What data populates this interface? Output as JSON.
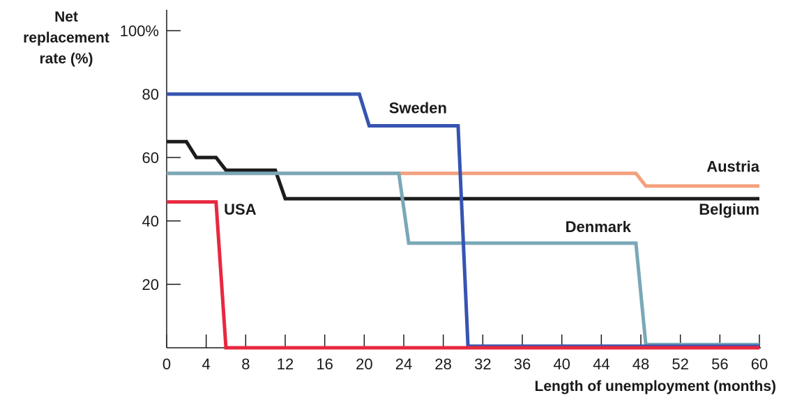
{
  "chart_data": {
    "type": "line",
    "title": "",
    "xlabel": "Length of unemployment (months)",
    "ylabel_lines": [
      "Net",
      "replacement",
      "rate (%)"
    ],
    "xlim": [
      0,
      60
    ],
    "ylim": [
      0,
      100
    ],
    "x_ticks": [
      0,
      4,
      8,
      12,
      16,
      20,
      24,
      28,
      32,
      36,
      40,
      44,
      48,
      52,
      56,
      60
    ],
    "y_ticks": [
      20,
      40,
      60,
      80,
      100
    ],
    "y_tick_labels": [
      "20",
      "40",
      "60",
      "80",
      "100%"
    ],
    "grid": false,
    "legend": "direct labels",
    "series": [
      {
        "name": "Austria",
        "color": "#f4a07e",
        "x": [
          0,
          47.5,
          48.5,
          60
        ],
        "y": [
          55,
          55,
          51,
          51
        ]
      },
      {
        "name": "Belgium",
        "color": "#1c1c1c",
        "x": [
          0,
          2,
          3,
          5,
          6,
          11,
          12,
          60
        ],
        "y": [
          65,
          65,
          60,
          60,
          56,
          56,
          47,
          47
        ]
      },
      {
        "name": "Denmark",
        "color": "#79a8b8",
        "x": [
          0,
          23.5,
          24.5,
          47.5,
          48.5,
          60
        ],
        "y": [
          55,
          55,
          33,
          33,
          1,
          1
        ]
      },
      {
        "name": "Sweden",
        "color": "#3654b0",
        "x": [
          0,
          19.5,
          20.5,
          29.5,
          30.5,
          60
        ],
        "y": [
          80,
          80,
          70,
          70,
          0.5,
          0.5
        ]
      },
      {
        "name": "USA",
        "color": "#e8283f",
        "x": [
          0,
          5,
          6,
          60
        ],
        "y": [
          46,
          46,
          0,
          0
        ]
      }
    ],
    "series_labels": [
      {
        "name": "Sweden",
        "x": 22.5,
        "y": 74,
        "anchor": "start"
      },
      {
        "name": "Austria",
        "x": 60,
        "y": 55.5,
        "anchor": "end"
      },
      {
        "name": "Belgium",
        "x": 60,
        "y": 42,
        "anchor": "end"
      },
      {
        "name": "Denmark",
        "x": 47,
        "y": 36.5,
        "anchor": "end"
      },
      {
        "name": "USA",
        "x": 5.8,
        "y": 42,
        "anchor": "start"
      }
    ]
  }
}
